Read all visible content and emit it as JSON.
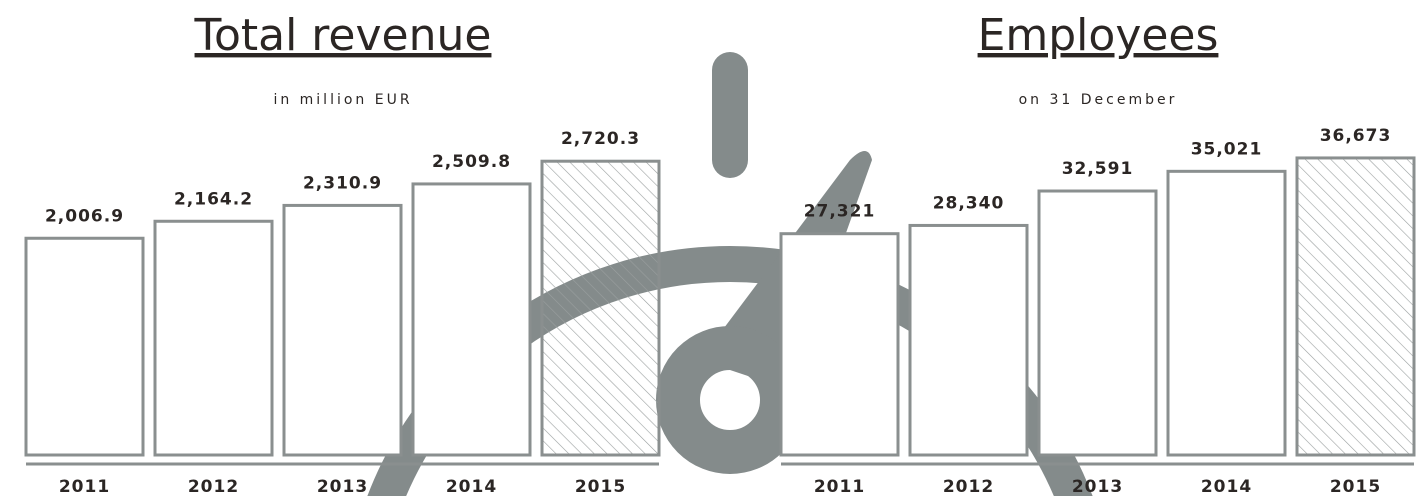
{
  "chart_data": [
    {
      "type": "bar",
      "title": "Total revenue",
      "subtitle": "in million EUR",
      "categories": [
        "2011",
        "2012",
        "2013",
        "2014",
        "2015"
      ],
      "values": [
        2006.9,
        2164.2,
        2310.9,
        2509.8,
        2720.3
      ],
      "value_labels": [
        "2,006.9",
        "2,164.2",
        "2,310.9",
        "2,509.8",
        "2,720.3"
      ],
      "ylim": [
        0,
        3000
      ],
      "color": "#8a8f8f"
    },
    {
      "type": "bar",
      "title": "Employees",
      "subtitle": "on 31 December",
      "categories": [
        "2011",
        "2012",
        "2013",
        "2014",
        "2015"
      ],
      "values": [
        27321,
        28340,
        32591,
        35021,
        36673
      ],
      "value_labels": [
        "27,321",
        "28,340",
        "32,591",
        "35,021",
        "36,673"
      ],
      "ylim": [
        0,
        40000
      ],
      "color": "#8a8f8f"
    }
  ]
}
